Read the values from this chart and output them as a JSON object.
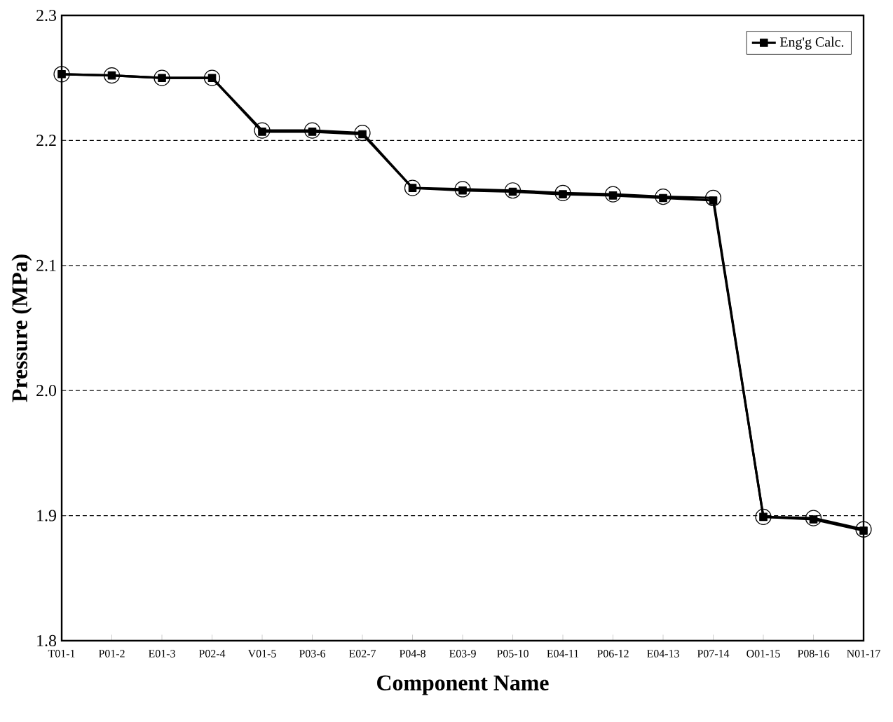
{
  "chart_data": {
    "type": "line",
    "xlabel": "Component Name",
    "ylabel": "Pressure (MPa)",
    "categories": [
      "T01-1",
      "P01-2",
      "E01-3",
      "P02-4",
      "V01-5",
      "P03-6",
      "E02-7",
      "P04-8",
      "E03-9",
      "P05-10",
      "E04-11",
      "P06-12",
      "E04-13",
      "P07-14",
      "O01-15",
      "P08-16",
      "N01-17"
    ],
    "series": [
      {
        "color": "#000000",
        "marker": "circle",
        "values": [
          2.253,
          2.252,
          2.25,
          2.25,
          2.208,
          2.208,
          2.206,
          2.162,
          2.161,
          2.16,
          2.158,
          2.157,
          2.155,
          2.154,
          1.899,
          1.898,
          1.889
        ]
      },
      {
        "name": "Eng'g Calc.",
        "color": "#000000",
        "marker": "square",
        "values": [
          2.253,
          2.252,
          2.25,
          2.25,
          2.207,
          2.207,
          2.205,
          2.162,
          2.16,
          2.159,
          2.157,
          2.156,
          2.154,
          2.152,
          1.899,
          1.897,
          1.888
        ]
      }
    ],
    "ylim": [
      1.8,
      2.3
    ],
    "yticks": [
      {
        "value": 1.8,
        "label": "1.8"
      },
      {
        "value": 1.9,
        "label": "1.9"
      },
      {
        "value": 2.0,
        "label": "2.0"
      },
      {
        "value": 2.1,
        "label": "2.1"
      },
      {
        "value": 2.2,
        "label": "2.2"
      },
      {
        "value": 2.3,
        "label": "2.3"
      }
    ],
    "grid": "y",
    "legend": "top right",
    "line_style": "solid"
  }
}
